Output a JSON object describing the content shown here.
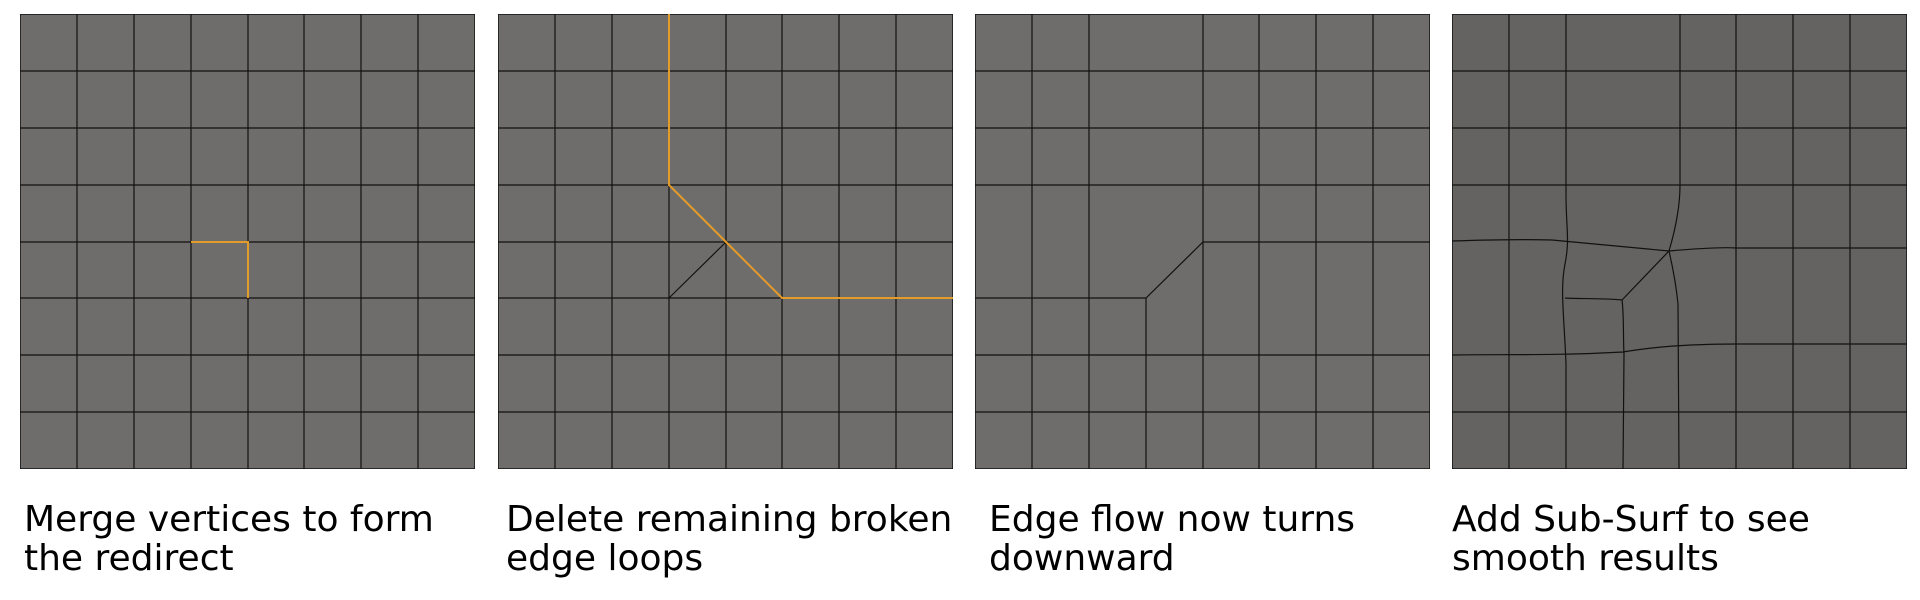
{
  "panels": [
    {
      "id": "merge-vertices",
      "caption": "Merge vertices to form the redirect"
    },
    {
      "id": "delete-broken-loops",
      "caption": "Delete remaining broken edge loops"
    },
    {
      "id": "edge-flow-turns",
      "caption": "Edge flow now turns downward"
    },
    {
      "id": "subsurf-result",
      "caption": "Add Sub-Surf to see smooth results"
    }
  ],
  "colors": {
    "mesh_face": "#6e6d6b",
    "mesh_face_smooth": "#646362",
    "edge": "#111111",
    "selected_edge": "#e39b2a"
  }
}
